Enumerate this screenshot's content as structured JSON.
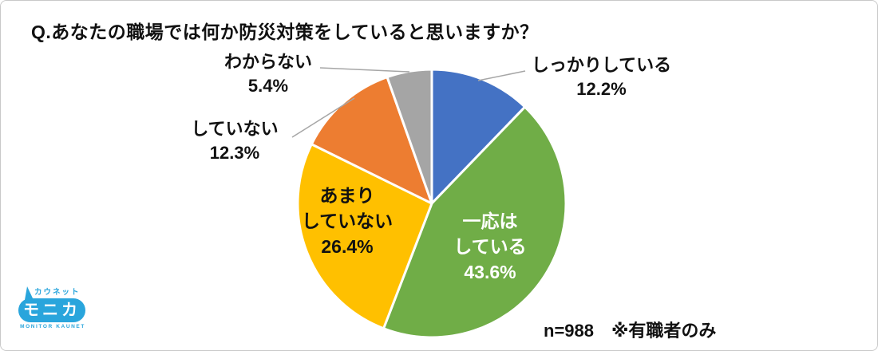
{
  "title": "Q.あなたの職場では何か防災対策をしていると思いますか？",
  "footnote": {
    "sample_size": "n=988",
    "note": "※有職者のみ"
  },
  "logo": {
    "top_text": "カウネット",
    "main_text": "モニカ",
    "bottom_text": "MONITOR KAUNET",
    "color": "#29a5dc"
  },
  "chart_data": {
    "type": "pie",
    "title": "Q.あなたの職場では何か防災対策をしていると思いますか？",
    "unit": "%",
    "start_angle_deg": 0,
    "direction": "clockwise",
    "legend_position": "none",
    "slice_border_color": "#ffffff",
    "leader_line_color": "#a6a6a6",
    "sample_note": "n=988 ※有職者のみ",
    "slices": [
      {
        "label": "しっかりしている",
        "value": 12.2,
        "pct_label": "12.2%",
        "color": "#4472c4",
        "label_placement": "outside-right",
        "text_color": "#111111",
        "label_lines": [
          "しっかりしている",
          "12.2%"
        ]
      },
      {
        "label": "一応はしている",
        "value": 43.6,
        "pct_label": "43.6%",
        "color": "#70ad47",
        "label_placement": "inside",
        "text_color": "#ffffff",
        "label_lines": [
          "一応は",
          "している",
          "43.6%"
        ]
      },
      {
        "label": "あまりしていない",
        "value": 26.4,
        "pct_label": "26.4%",
        "color": "#ffc000",
        "label_placement": "inside",
        "text_color": "#111111",
        "label_lines": [
          "あまり",
          "していない",
          "26.4%"
        ]
      },
      {
        "label": "していない",
        "value": 12.3,
        "pct_label": "12.3%",
        "color": "#ed7d31",
        "label_placement": "outside-left",
        "text_color": "#111111",
        "label_lines": [
          "していない",
          "12.3%"
        ]
      },
      {
        "label": "わからない",
        "value": 5.4,
        "pct_label": "5.4%",
        "color": "#a5a5a5",
        "label_placement": "outside-top-left",
        "text_color": "#111111",
        "label_lines": [
          "わからない",
          "5.4%"
        ]
      }
    ]
  }
}
